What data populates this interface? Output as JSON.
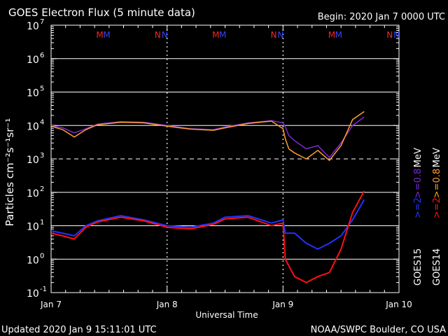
{
  "header": {
    "title": "GOES Electron Flux (5 minute data)",
    "begin": "Begin: 2020 Jan 7 0000 UTC"
  },
  "footer": {
    "updated": "Updated 2020 Jan  9 15:11:01 UTC",
    "credit": "NOAA/SWPC Boulder, CO USA"
  },
  "colors": {
    "background": "#000000",
    "goes15_low": "#7a2ccf",
    "goes14_low": "#ffa030",
    "goes15_high": "#2233ff",
    "goes14_high": "#ff1111",
    "grid": "#ffffff"
  },
  "legend": {
    "right_col1": [
      {
        "text": ">=2",
        "color": "#2233ff"
      },
      {
        "text": ">=0.8",
        "color": "#7a2ccf"
      },
      {
        "text": "MeV",
        "color": "#ffffff"
      }
    ],
    "right_col2": [
      {
        "text": ">=2",
        "color": "#ff1111"
      },
      {
        "text": ">=0.8",
        "color": "#ffa030"
      },
      {
        "text": "MeV",
        "color": "#ffffff"
      }
    ],
    "goes15": "GOES15",
    "goes14": "GOES14"
  },
  "chart_data": {
    "type": "line",
    "title": "GOES Electron Flux (5 minute data)",
    "xlabel": "Universal Time",
    "ylabel": "Particles cm⁻²s⁻¹sr⁻¹",
    "yscale": "log",
    "ylim": [
      0.1,
      10000000
    ],
    "x_ticks": [
      "Jan 7",
      "Jan 8",
      "Jan 9",
      "Jan 10"
    ],
    "y_ticks": [
      {
        "base": "10",
        "exp": "7"
      },
      {
        "base": "10",
        "exp": "6"
      },
      {
        "base": "10",
        "exp": "5"
      },
      {
        "base": "10",
        "exp": "4"
      },
      {
        "base": "10",
        "exp": "3"
      },
      {
        "base": "10",
        "exp": "2"
      },
      {
        "base": "10",
        "exp": "1"
      },
      {
        "base": "10",
        "exp": "0"
      },
      {
        "base": "10",
        "exp": "-1"
      }
    ],
    "threshold_level": 1000,
    "markers": [
      {
        "day": 0.42,
        "label": "M",
        "color": "#ff2222"
      },
      {
        "day": 0.48,
        "label": "M",
        "color": "#3344ff"
      },
      {
        "day": 0.92,
        "label": "N",
        "color": "#ff2222"
      },
      {
        "day": 0.98,
        "label": "N",
        "color": "#3344ff"
      },
      {
        "day": 1.42,
        "label": "M",
        "color": "#ff2222"
      },
      {
        "day": 1.48,
        "label": "M",
        "color": "#3344ff"
      },
      {
        "day": 1.92,
        "label": "N",
        "color": "#ff2222"
      },
      {
        "day": 1.98,
        "label": "N",
        "color": "#3344ff"
      },
      {
        "day": 2.42,
        "label": "M",
        "color": "#ff2222"
      },
      {
        "day": 2.48,
        "label": "M",
        "color": "#3344ff"
      },
      {
        "day": 2.92,
        "label": "N",
        "color": "#ff2222"
      },
      {
        "day": 2.98,
        "label": "N",
        "color": "#3344ff"
      }
    ],
    "series": [
      {
        "name": "GOES15 >=0.8 MeV",
        "color": "#7a2ccf",
        "x": [
          0,
          0.1,
          0.2,
          0.3,
          0.4,
          0.6,
          0.8,
          1.0,
          1.2,
          1.4,
          1.5,
          1.7,
          1.9,
          2.0,
          2.02,
          2.05,
          2.1,
          2.2,
          2.3,
          2.4,
          2.5,
          2.6,
          2.7
        ],
        "y": [
          10000,
          8500,
          6000,
          8000,
          11000,
          13000,
          12500,
          10000,
          8000,
          7500,
          9000,
          12000,
          14000,
          12000,
          9000,
          5000,
          3500,
          2000,
          2500,
          1100,
          3000,
          10000,
          18000
        ]
      },
      {
        "name": "GOES14 >=0.8 MeV",
        "color": "#ffa030",
        "x": [
          0,
          0.1,
          0.2,
          0.3,
          0.4,
          0.6,
          0.8,
          1.0,
          1.2,
          1.4,
          1.5,
          1.7,
          1.9,
          2.0,
          2.02,
          2.05,
          2.1,
          2.2,
          2.3,
          2.4,
          2.5,
          2.6,
          2.7
        ],
        "y": [
          9500,
          7500,
          4500,
          7500,
          10500,
          12500,
          12000,
          9500,
          7800,
          7200,
          8500,
          11500,
          13500,
          8000,
          4000,
          2000,
          1500,
          1000,
          1800,
          900,
          2500,
          15000,
          26000
        ]
      },
      {
        "name": "GOES15 >=2 MeV",
        "color": "#2233ff",
        "x": [
          0,
          0.1,
          0.2,
          0.3,
          0.4,
          0.6,
          0.8,
          1.0,
          1.2,
          1.4,
          1.5,
          1.7,
          1.9,
          2.0,
          2.02,
          2.1,
          2.2,
          2.3,
          2.4,
          2.5,
          2.6,
          2.7
        ],
        "y": [
          7,
          6,
          5,
          10,
          14,
          20,
          15,
          10,
          9,
          12,
          18,
          20,
          12,
          15,
          6,
          6,
          3,
          2,
          3,
          5,
          15,
          60
        ]
      },
      {
        "name": "GOES14 >=2 MeV",
        "color": "#ff1111",
        "x": [
          0,
          0.1,
          0.2,
          0.3,
          0.4,
          0.6,
          0.8,
          1.0,
          1.2,
          1.4,
          1.5,
          1.7,
          1.9,
          2.0,
          2.02,
          2.1,
          2.2,
          2.3,
          2.4,
          2.5,
          2.6,
          2.7
        ],
        "y": [
          6,
          5,
          4,
          9,
          13,
          18,
          14,
          9,
          8,
          11,
          16,
          18,
          10,
          12,
          1,
          0.3,
          0.2,
          0.3,
          0.4,
          2,
          25,
          110
        ]
      }
    ]
  }
}
